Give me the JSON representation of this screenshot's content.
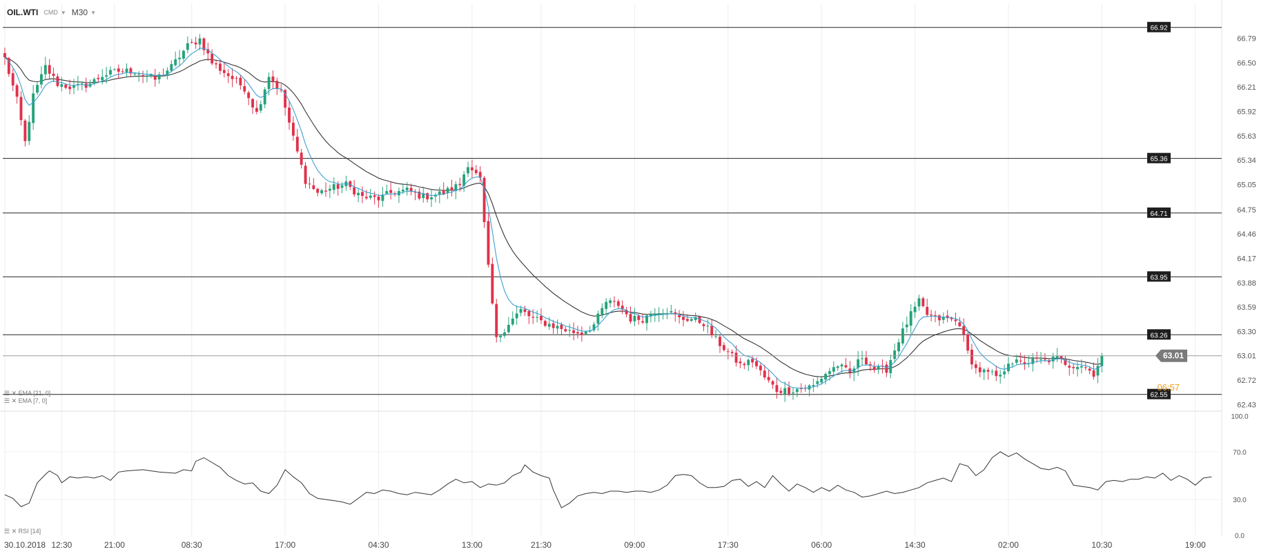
{
  "header": {
    "symbol": "OIL.WTI",
    "market": "CMD",
    "timeframe": "M30",
    "caret_icon": "chevron-down-icon"
  },
  "colors": {
    "bull": "#26a27b",
    "bear": "#e0314b",
    "ema_fast": "#3aa0d0",
    "ema_slow": "#333333",
    "rsi": "#333333",
    "level": "#222222",
    "last_price_tag": "#7a7a7a",
    "countdown": "#f0a020",
    "grid": "#eeeeee"
  },
  "chart_data": [
    {
      "type": "candlestick",
      "symbol": "OIL.WTI",
      "timeframe": "M30",
      "ylim": [
        62.4,
        67.0
      ],
      "y_ticks": [
        "66.79",
        "66.50",
        "66.21",
        "65.92",
        "65.63",
        "65.34",
        "65.05",
        "64.75",
        "64.46",
        "64.17",
        "63.88",
        "63.59",
        "63.30",
        "63.01",
        "62.72",
        "62.43"
      ],
      "x_ticks": [
        {
          "index": 0,
          "label": "30.10.2018"
        },
        {
          "index": 14,
          "label": "12:30"
        },
        {
          "index": 27,
          "label": "21:00"
        },
        {
          "index": 46,
          "label": "08:30"
        },
        {
          "index": 69,
          "label": "17:00"
        },
        {
          "index": 92,
          "label": "04:30"
        },
        {
          "index": 115,
          "label": "13:00"
        },
        {
          "index": 132,
          "label": "21:30"
        },
        {
          "index": 155,
          "label": "09:00"
        },
        {
          "index": 178,
          "label": "17:30"
        },
        {
          "index": 201,
          "label": "06:00"
        },
        {
          "index": 224,
          "label": "14:30"
        },
        {
          "index": 247,
          "label": "02:00"
        },
        {
          "index": 270,
          "label": "10:30"
        },
        {
          "index": 293,
          "label": "19:00"
        }
      ],
      "candle_slots": 300,
      "levels": [
        {
          "value": 66.92,
          "label": "66.92"
        },
        {
          "value": 65.36,
          "label": "65.36"
        },
        {
          "value": 64.71,
          "label": "64.71"
        },
        {
          "value": 63.95,
          "label": "63.95"
        },
        {
          "value": 63.26,
          "label": "63.26"
        },
        {
          "value": 62.55,
          "label": "62.55"
        }
      ],
      "last_price": {
        "value": 63.01,
        "label": "63.01"
      },
      "countdown_label": "06:57",
      "indicators": [
        {
          "name": "EMA",
          "params": "[21, 0]"
        },
        {
          "name": "EMA",
          "params": "[7, 0]"
        }
      ],
      "anchors_close": [
        [
          0,
          66.55
        ],
        [
          3,
          66.05
        ],
        [
          5,
          65.55
        ],
        [
          7,
          66.1
        ],
        [
          10,
          66.45
        ],
        [
          13,
          66.25
        ],
        [
          17,
          66.2
        ],
        [
          21,
          66.25
        ],
        [
          24,
          66.35
        ],
        [
          28,
          66.4
        ],
        [
          32,
          66.4
        ],
        [
          37,
          66.3
        ],
        [
          41,
          66.45
        ],
        [
          45,
          66.7
        ],
        [
          48,
          66.78
        ],
        [
          51,
          66.5
        ],
        [
          55,
          66.35
        ],
        [
          59,
          66.2
        ],
        [
          62,
          65.9
        ],
        [
          65,
          66.35
        ],
        [
          68,
          66.15
        ],
        [
          71,
          65.6
        ],
        [
          74,
          65.1
        ],
        [
          77,
          64.95
        ],
        [
          80,
          65.0
        ],
        [
          84,
          65.05
        ],
        [
          88,
          64.9
        ],
        [
          92,
          64.88
        ],
        [
          95,
          64.95
        ],
        [
          99,
          64.98
        ],
        [
          103,
          64.9
        ],
        [
          108,
          64.95
        ],
        [
          112,
          65.05
        ],
        [
          114,
          65.3
        ],
        [
          117,
          65.1
        ],
        [
          119,
          64.05
        ],
        [
          121,
          63.2
        ],
        [
          124,
          63.4
        ],
        [
          127,
          63.55
        ],
        [
          130,
          63.45
        ],
        [
          133,
          63.4
        ],
        [
          136,
          63.35
        ],
        [
          139,
          63.3
        ],
        [
          142,
          63.28
        ],
        [
          145,
          63.38
        ],
        [
          148,
          63.65
        ],
        [
          151,
          63.62
        ],
        [
          154,
          63.45
        ],
        [
          157,
          63.45
        ],
        [
          160,
          63.55
        ],
        [
          163,
          63.55
        ],
        [
          166,
          63.45
        ],
        [
          169,
          63.45
        ],
        [
          172,
          63.4
        ],
        [
          175,
          63.2
        ],
        [
          178,
          63.05
        ],
        [
          181,
          62.9
        ],
        [
          184,
          62.95
        ],
        [
          187,
          62.75
        ],
        [
          190,
          62.6
        ],
        [
          193,
          62.6
        ],
        [
          196,
          62.62
        ],
        [
          199,
          62.65
        ],
        [
          202,
          62.8
        ],
        [
          205,
          62.9
        ],
        [
          208,
          62.8
        ],
        [
          211,
          63.0
        ],
        [
          214,
          62.85
        ],
        [
          217,
          62.85
        ],
        [
          220,
          63.2
        ],
        [
          223,
          63.5
        ],
        [
          225,
          63.65
        ],
        [
          227,
          63.5
        ],
        [
          229,
          63.45
        ],
        [
          232,
          63.45
        ],
        [
          235,
          63.4
        ],
        [
          237,
          63.05
        ],
        [
          239,
          62.85
        ],
        [
          242,
          62.8
        ],
        [
          245,
          62.75
        ],
        [
          247,
          62.95
        ],
        [
          250,
          62.92
        ],
        [
          253,
          62.95
        ],
        [
          256,
          62.95
        ],
        [
          259,
          62.98
        ],
        [
          262,
          62.9
        ],
        [
          265,
          62.9
        ],
        [
          268,
          62.8
        ],
        [
          270,
          63.01
        ]
      ],
      "anchors_rsi": [
        [
          0,
          34
        ],
        [
          2,
          31
        ],
        [
          4,
          24
        ],
        [
          6,
          27
        ],
        [
          8,
          44
        ],
        [
          10,
          51
        ],
        [
          11,
          54
        ],
        [
          13,
          50
        ],
        [
          14,
          44
        ],
        [
          16,
          49
        ],
        [
          18,
          48
        ],
        [
          20,
          49
        ],
        [
          22,
          48
        ],
        [
          24,
          50
        ],
        [
          26,
          46
        ],
        [
          28,
          53
        ],
        [
          30,
          54
        ],
        [
          34,
          55
        ],
        [
          38,
          53
        ],
        [
          42,
          52
        ],
        [
          44,
          55
        ],
        [
          46,
          54
        ],
        [
          47,
          62
        ],
        [
          49,
          65
        ],
        [
          51,
          61
        ],
        [
          53,
          57
        ],
        [
          55,
          50
        ],
        [
          57,
          46
        ],
        [
          59,
          43
        ],
        [
          61,
          44
        ],
        [
          63,
          37
        ],
        [
          65,
          35
        ],
        [
          67,
          42
        ],
        [
          69,
          55
        ],
        [
          71,
          49
        ],
        [
          73,
          44
        ],
        [
          75,
          35
        ],
        [
          77,
          31
        ],
        [
          79,
          30
        ],
        [
          81,
          29
        ],
        [
          83,
          28
        ],
        [
          85,
          26
        ],
        [
          87,
          31
        ],
        [
          89,
          36
        ],
        [
          91,
          35
        ],
        [
          93,
          38
        ],
        [
          95,
          37
        ],
        [
          97,
          35
        ],
        [
          99,
          34
        ],
        [
          101,
          36
        ],
        [
          103,
          35
        ],
        [
          105,
          34
        ],
        [
          107,
          38
        ],
        [
          109,
          43
        ],
        [
          111,
          47
        ],
        [
          113,
          44
        ],
        [
          115,
          45
        ],
        [
          117,
          40
        ],
        [
          119,
          43
        ],
        [
          121,
          42
        ],
        [
          123,
          44
        ],
        [
          125,
          50
        ],
        [
          127,
          53
        ],
        [
          128,
          59
        ],
        [
          130,
          53
        ],
        [
          132,
          50
        ],
        [
          134,
          48
        ],
        [
          135,
          38
        ],
        [
          137,
          23
        ],
        [
          139,
          27
        ],
        [
          141,
          33
        ],
        [
          143,
          35
        ],
        [
          145,
          36
        ],
        [
          147,
          35
        ],
        [
          149,
          37
        ],
        [
          151,
          37
        ],
        [
          153,
          36
        ],
        [
          155,
          37
        ],
        [
          157,
          37
        ],
        [
          159,
          36
        ],
        [
          161,
          38
        ],
        [
          163,
          42
        ],
        [
          165,
          50
        ],
        [
          167,
          51
        ],
        [
          169,
          50
        ],
        [
          171,
          44
        ],
        [
          173,
          40
        ],
        [
          175,
          40
        ],
        [
          177,
          41
        ],
        [
          179,
          46
        ],
        [
          181,
          47
        ],
        [
          183,
          41
        ],
        [
          185,
          45
        ],
        [
          187,
          40
        ],
        [
          189,
          50
        ],
        [
          191,
          43
        ],
        [
          193,
          37
        ],
        [
          195,
          43
        ],
        [
          197,
          40
        ],
        [
          199,
          36
        ],
        [
          201,
          40
        ],
        [
          203,
          37
        ],
        [
          205,
          42
        ],
        [
          207,
          38
        ],
        [
          209,
          36
        ],
        [
          211,
          32
        ],
        [
          213,
          33
        ],
        [
          215,
          35
        ],
        [
          217,
          37
        ],
        [
          219,
          35
        ],
        [
          221,
          36
        ],
        [
          223,
          38
        ],
        [
          225,
          40
        ],
        [
          227,
          44
        ],
        [
          229,
          46
        ],
        [
          231,
          48
        ],
        [
          233,
          45
        ],
        [
          235,
          60
        ],
        [
          237,
          58
        ],
        [
          239,
          50
        ],
        [
          241,
          55
        ],
        [
          243,
          65
        ],
        [
          245,
          70
        ],
        [
          247,
          66
        ],
        [
          249,
          69
        ],
        [
          251,
          64
        ],
        [
          253,
          60
        ],
        [
          255,
          56
        ],
        [
          257,
          55
        ],
        [
          259,
          57
        ],
        [
          261,
          54
        ],
        [
          263,
          42
        ],
        [
          265,
          41
        ],
        [
          267,
          40
        ],
        [
          269,
          38
        ],
        [
          271,
          45
        ],
        [
          273,
          46
        ],
        [
          275,
          45
        ],
        [
          277,
          47
        ],
        [
          279,
          47
        ],
        [
          281,
          49
        ],
        [
          283,
          48
        ],
        [
          285,
          52
        ],
        [
          287,
          46
        ],
        [
          289,
          50
        ],
        [
          291,
          47
        ],
        [
          293,
          42
        ],
        [
          295,
          48
        ],
        [
          297,
          49
        ]
      ]
    },
    {
      "type": "line",
      "name": "RSI",
      "params": "[14]",
      "ylim": [
        0,
        100
      ],
      "y_ticks": [
        "100.0",
        "70.0",
        "30.0",
        "0.0"
      ]
    }
  ]
}
